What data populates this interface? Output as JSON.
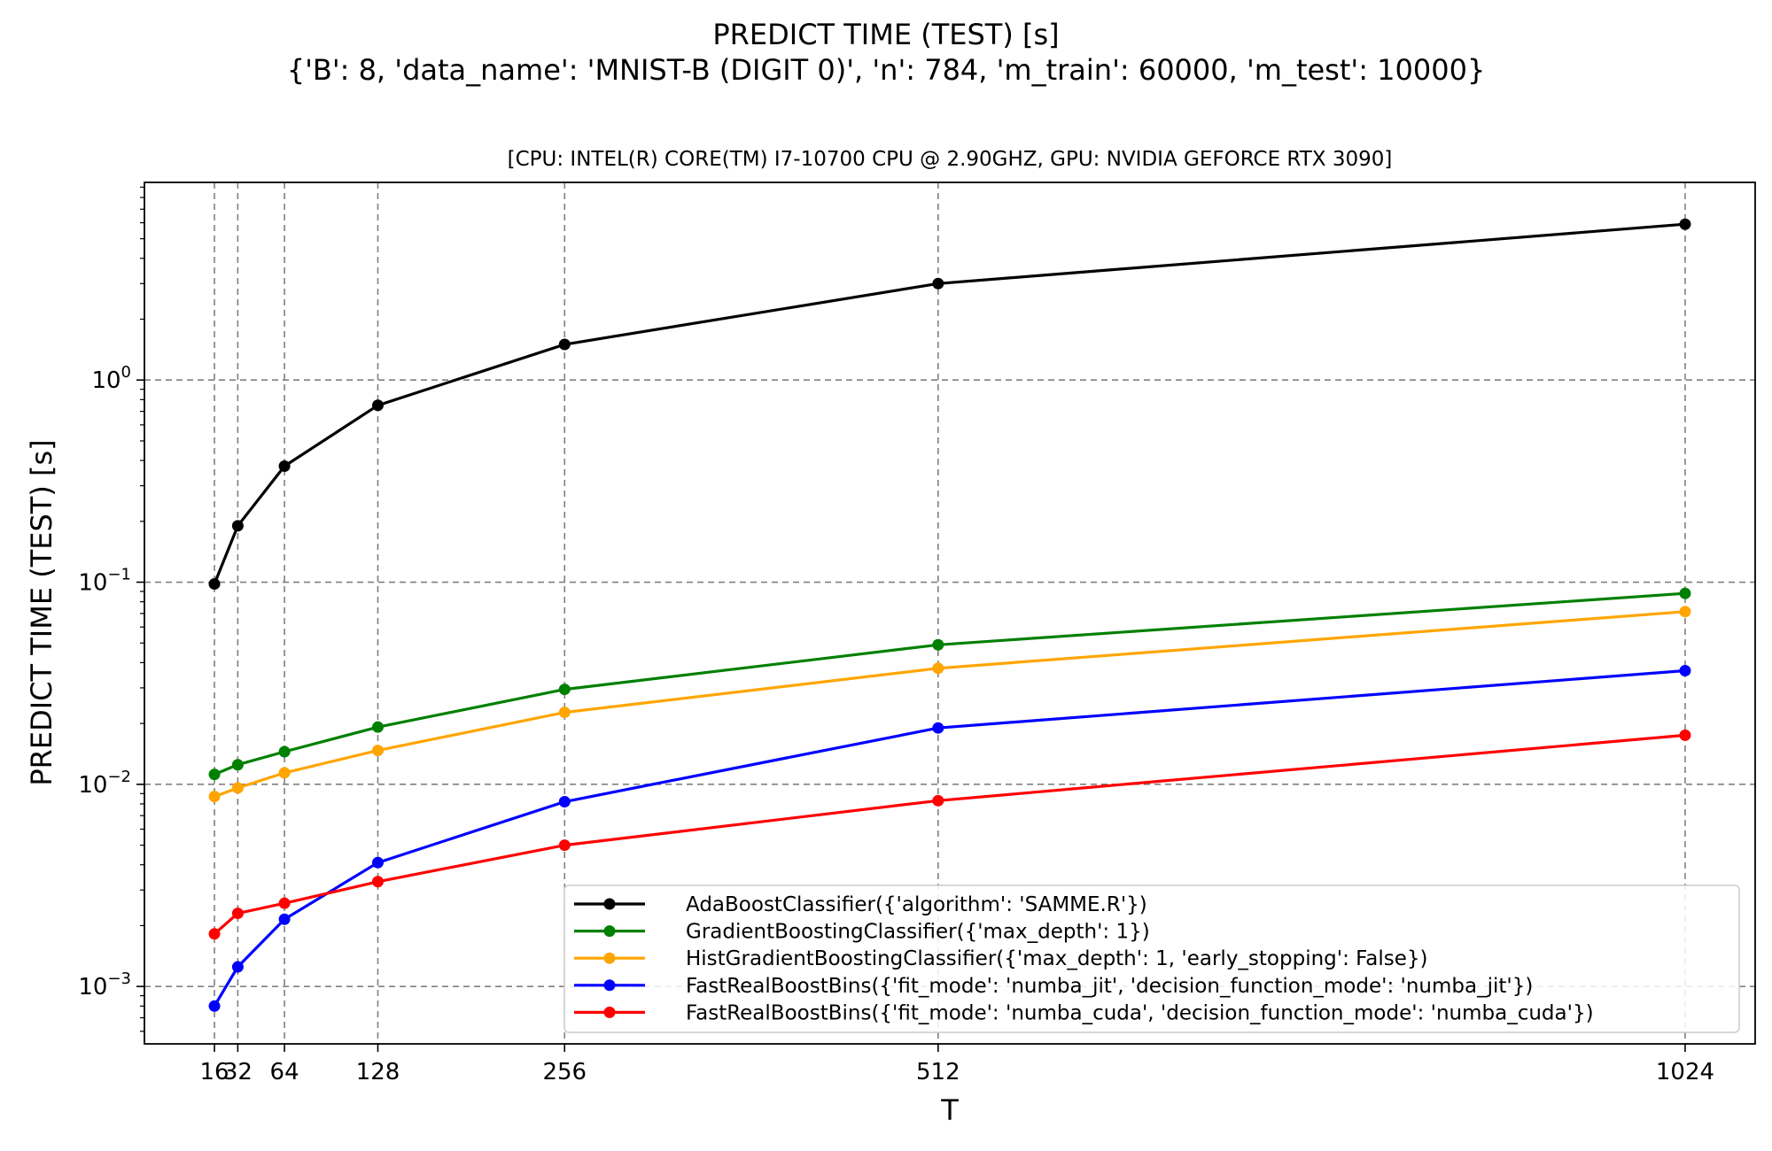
{
  "title_line1": "PREDICT TIME (TEST) [s]",
  "title_line2": "{'B': 8, 'data_name': 'MNIST-B (DIGIT 0)', 'n': 784, 'm_train': 60000, 'm_test': 10000}",
  "chart_data": {
    "type": "line",
    "title": "[CPU: INTEL(R) CORE(TM) I7-10700 CPU @ 2.90GHZ, GPU: NVIDIA GEFORCE RTX 3090]",
    "xlabel": "T",
    "ylabel": "PREDICT TIME (TEST) [s]",
    "x": [
      16,
      32,
      64,
      128,
      256,
      512,
      1024
    ],
    "x_tick_labels": [
      "16",
      "32",
      "64",
      "128",
      "256",
      "512",
      "1024"
    ],
    "xlim": [
      -32,
      1072
    ],
    "y_scale": "log",
    "ylim": [
      0.00052,
      9.5
    ],
    "y_ticks": [
      {
        "value": 1,
        "base": "10",
        "exp": "0"
      },
      {
        "value": 0.1,
        "base": "10",
        "exp": "−1"
      },
      {
        "value": 0.01,
        "base": "10",
        "exp": "−2"
      },
      {
        "value": 0.001,
        "base": "10",
        "exp": "−3"
      }
    ],
    "grid": true,
    "legend_position": "lower-right",
    "series": [
      {
        "name": "AdaBoostClassifier({'algorithm': 'SAMME.R'})",
        "color": "#000000",
        "values": [
          0.098,
          0.19,
          0.375,
          0.75,
          1.5,
          3.0,
          5.9
        ]
      },
      {
        "name": "GradientBoostingClassifier({'max_depth': 1})",
        "color": "#008000",
        "values": [
          0.0112,
          0.0125,
          0.0145,
          0.0192,
          0.0295,
          0.049,
          0.088
        ]
      },
      {
        "name": "HistGradientBoostingClassifier({'max_depth': 1, 'early_stopping': False})",
        "color": "#ffa500",
        "values": [
          0.0087,
          0.0096,
          0.0114,
          0.0147,
          0.0227,
          0.0375,
          0.0715
        ]
      },
      {
        "name": "FastRealBoostBins({'fit_mode': 'numba_jit', 'decision_function_mode': 'numba_jit'})",
        "color": "#0000ff",
        "values": [
          0.0008,
          0.00125,
          0.00215,
          0.0041,
          0.0082,
          0.019,
          0.0365
        ]
      },
      {
        "name": "FastRealBoostBins({'fit_mode': 'numba_cuda', 'decision_function_mode': 'numba_cuda'})",
        "color": "#ff0000",
        "values": [
          0.00182,
          0.0023,
          0.00258,
          0.0033,
          0.005,
          0.0083,
          0.0175
        ]
      }
    ]
  }
}
